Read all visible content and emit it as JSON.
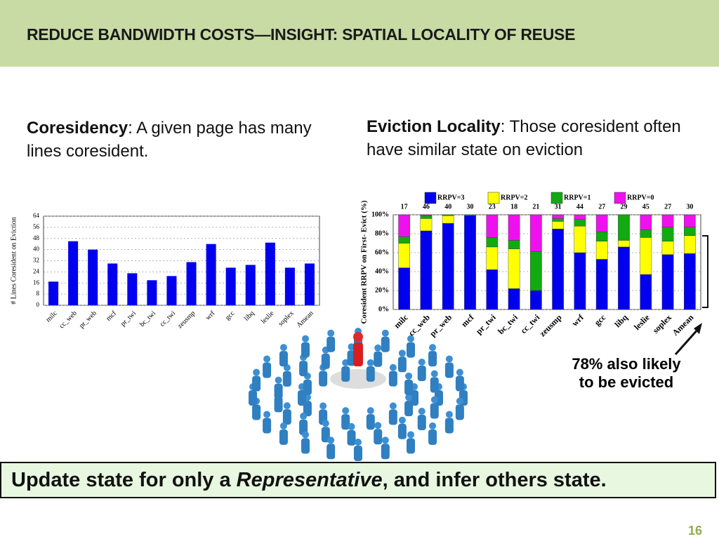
{
  "header": {
    "title": "REDUCE BANDWIDTH COSTS—INSIGHT: SPATIAL LOCALITY OF REUSE"
  },
  "left_text": {
    "term": "Coresidency",
    "text": ": A given page has many lines coresident."
  },
  "right_text": {
    "term": "Eviction Locality",
    "text": ": Those coresident often have similar state on eviction"
  },
  "chart_data": [
    {
      "type": "bar",
      "ylabel": "# Lines Coresident on Eviction",
      "categories": [
        "milc",
        "cc_web",
        "pr_web",
        "mcf",
        "pr_twi",
        "bc_twi",
        "cc_twi",
        "zeusmp",
        "wrf",
        "gcc",
        "libq",
        "leslie",
        "soplex",
        "Amean"
      ],
      "values": [
        17,
        46,
        40,
        30,
        23,
        18,
        21,
        31,
        44,
        27,
        29,
        45,
        27,
        30
      ],
      "color": "#0000ee",
      "ylim": [
        0,
        64
      ],
      "yticks": [
        0,
        8,
        16,
        24,
        32,
        40,
        48,
        56,
        64
      ],
      "grid": true
    },
    {
      "type": "stacked_bar",
      "ylabel": "Coresident RRPV on First- Evict (%)",
      "categories": [
        "milc",
        "cc_web",
        "pr_web",
        "mcf",
        "pr_twi",
        "bc_twi",
        "cc_twi",
        "zeusmp",
        "wrf",
        "gcc",
        "libq",
        "leslie",
        "soplex",
        "Amean"
      ],
      "series": [
        {
          "name": "RRPV=3",
          "color": "#0000ee",
          "values": [
            44,
            83,
            91,
            99,
            42,
            22,
            20,
            85,
            60,
            53,
            66,
            37,
            58,
            59
          ]
        },
        {
          "name": "RRPV=2",
          "color": "#ffff00",
          "values": [
            26,
            13,
            8,
            0,
            24,
            42,
            0,
            8,
            28,
            19,
            7,
            39,
            14,
            19
          ]
        },
        {
          "name": "RRPV=1",
          "color": "#11aa11",
          "values": [
            7,
            3,
            1,
            1,
            10,
            9,
            41,
            3,
            7,
            10,
            27,
            8,
            15,
            9
          ]
        },
        {
          "name": "RRPV=0",
          "color": "#ee11ee",
          "values": [
            23,
            1,
            0,
            0,
            24,
            27,
            39,
            4,
            5,
            18,
            0,
            16,
            13,
            13
          ]
        }
      ],
      "ylim": [
        0,
        100
      ],
      "yticks": [
        {
          "value": 0,
          "label": "0%"
        },
        {
          "value": 20,
          "label": "20%"
        },
        {
          "value": 40,
          "label": "40%"
        },
        {
          "value": 60,
          "label": "60%"
        },
        {
          "value": 80,
          "label": "80%"
        },
        {
          "value": 100,
          "label": "100%"
        }
      ],
      "grid": true
    }
  ],
  "annotation": [
    "78% also likely",
    "to be evicted"
  ],
  "banner": {
    "before": "Update state for only a ",
    "emphasis": "Representative",
    "after": ", and infer others state."
  },
  "page_number": "16"
}
